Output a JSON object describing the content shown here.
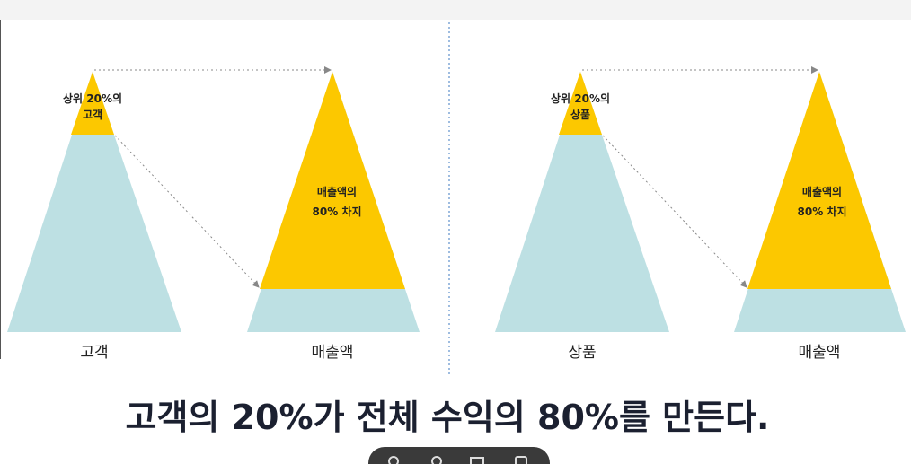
{
  "panels": [
    {
      "top_label": [
        "상위 20%의",
        "고객"
      ],
      "share_label": [
        "매출액의",
        "80% 차지"
      ],
      "left_label": "고객",
      "right_label": "매출액"
    },
    {
      "top_label": [
        "상위 20%의",
        "상품"
      ],
      "share_label": [
        "매출액의",
        "80% 차지"
      ],
      "left_label": "상품",
      "right_label": "매출액"
    }
  ],
  "caption": "고객의 20%가 전체 수익의 80%를 만든다."
}
